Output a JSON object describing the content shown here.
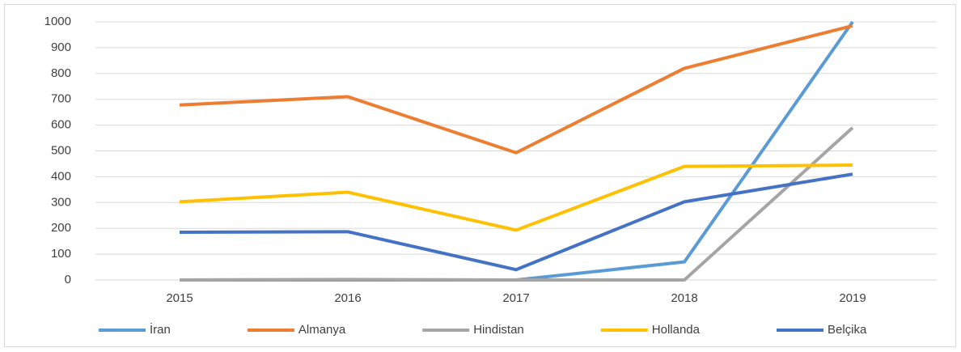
{
  "chart_data": {
    "type": "line",
    "categories": [
      "2015",
      "2016",
      "2017",
      "2018",
      "2019"
    ],
    "series": [
      {
        "name": "İran",
        "color": "#5b9bd5",
        "values": [
          0,
          0,
          0,
          70,
          1000
        ]
      },
      {
        "name": "Almanya",
        "color": "#ed7d31",
        "values": [
          678,
          710,
          493,
          820,
          985
        ]
      },
      {
        "name": "Hindistan",
        "color": "#a5a5a5",
        "values": [
          0,
          2,
          0,
          0,
          590
        ]
      },
      {
        "name": "Hollanda",
        "color": "#ffc000",
        "values": [
          303,
          340,
          193,
          440,
          445
        ]
      },
      {
        "name": "Belçika",
        "color": "#4472c4",
        "values": [
          185,
          187,
          40,
          303,
          410
        ]
      }
    ],
    "ylim": [
      0,
      1000
    ],
    "yticks": [
      0,
      100,
      200,
      300,
      400,
      500,
      600,
      700,
      800,
      900,
      1000
    ],
    "grid": true,
    "legend": "bottom"
  }
}
